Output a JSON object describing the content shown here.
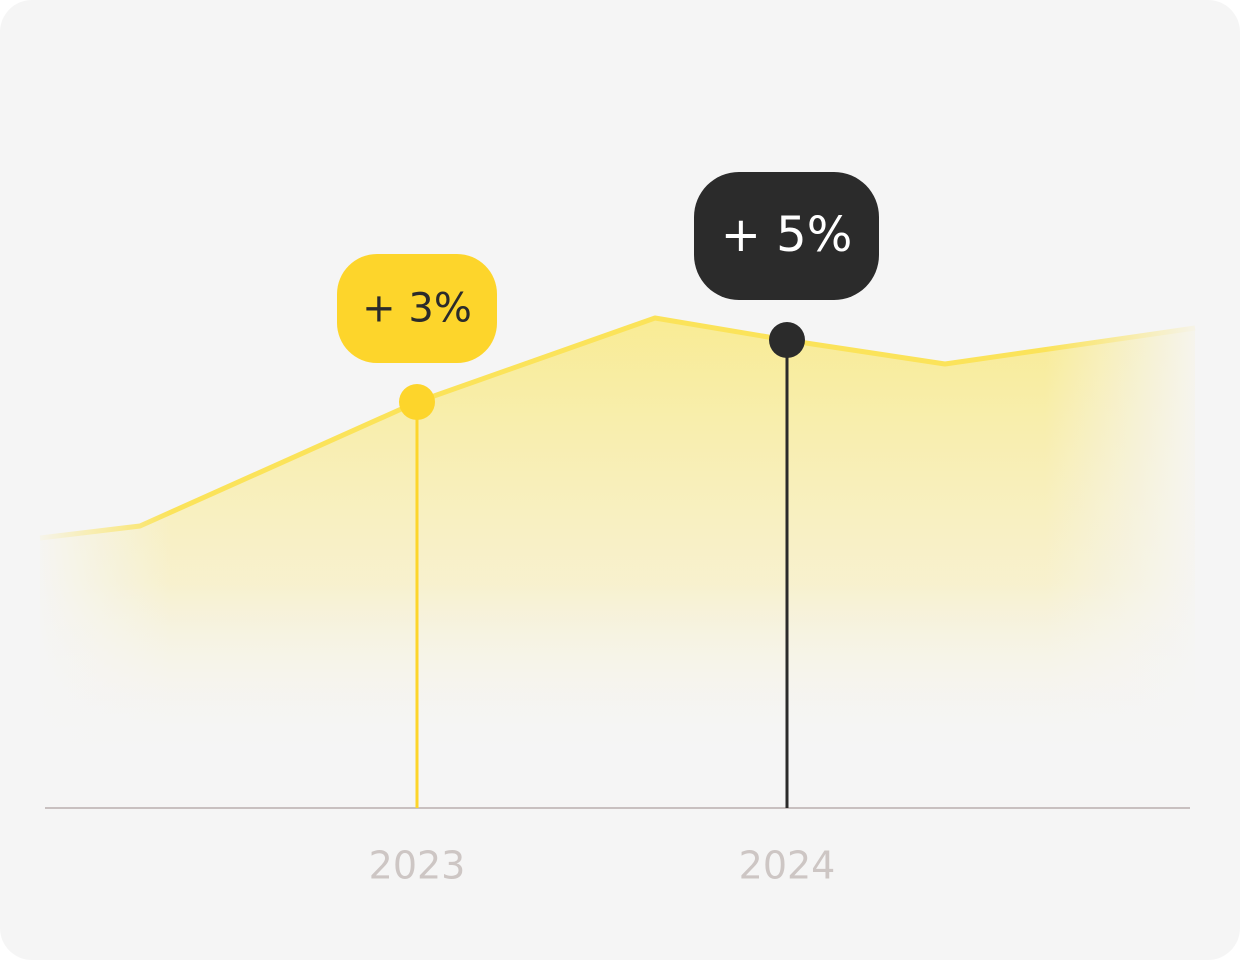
{
  "chart_data": {
    "type": "line",
    "categories": [
      "2023",
      "2024"
    ],
    "values": [
      3,
      5
    ],
    "value_labels": [
      "+ 3%",
      "+ 5%"
    ],
    "colors": [
      "#fdd52b",
      "#2b2b2b"
    ]
  }
}
